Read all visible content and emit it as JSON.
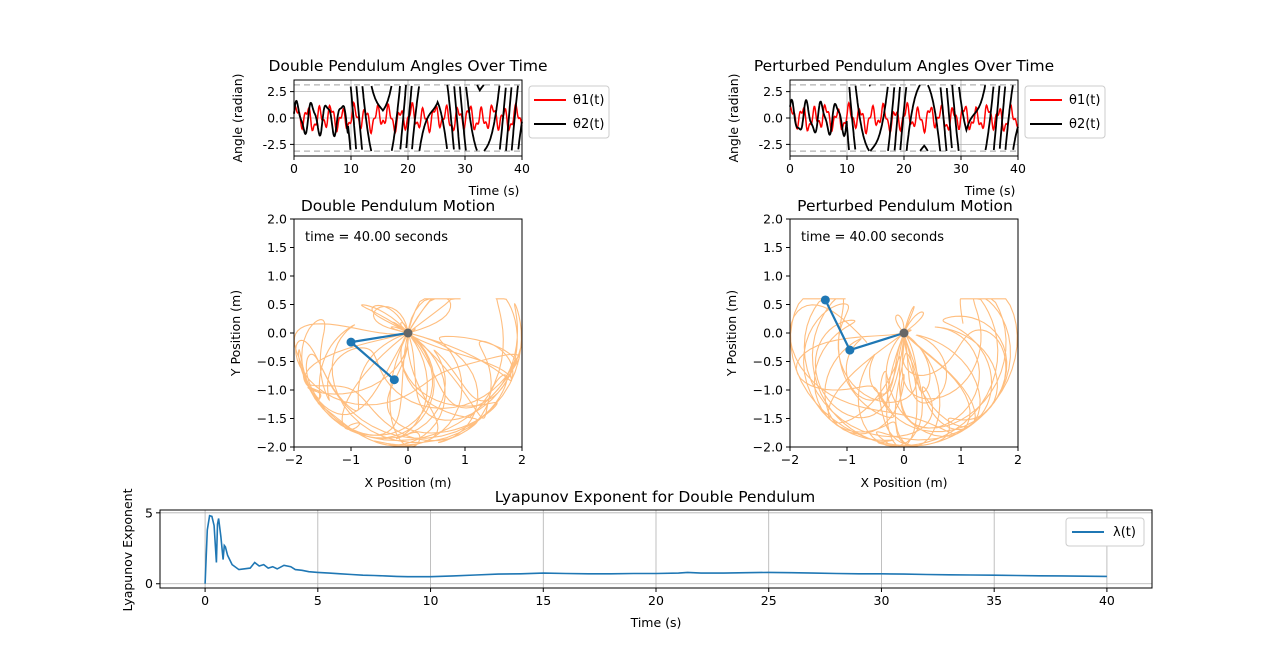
{
  "colors": {
    "theta1": "#ff0000",
    "theta2": "#000000",
    "trace": "#ffbb78",
    "rod": "#1f77b4",
    "mass": "#1f77b4",
    "pivot": "#666666",
    "lyapunov": "#1f77b4",
    "grid": "#b0b0b0",
    "limit_line": "#b0b0b0"
  },
  "chart_data": [
    {
      "id": "angles",
      "type": "line",
      "title": "Double Pendulum Angles Over Time",
      "xlabel": "Time (s)",
      "ylabel": "Angle (radian)",
      "xlim": [
        0,
        40
      ],
      "ylim": [
        -3.6,
        3.6
      ],
      "xticks": [
        "0",
        "10",
        "20",
        "30",
        "40"
      ],
      "yticks": [
        "2.5",
        "0.0",
        "-2.5"
      ],
      "grid": true,
      "hlines": [
        3.14159,
        -3.14159
      ],
      "legend_position": "outside-right",
      "series": [
        {
          "name": "θ1(t)",
          "key": "theta1",
          "amplitude": 1.15,
          "behavior": "bounded oscillation"
        },
        {
          "name": "θ2(t)",
          "key": "theta2",
          "amplitude": 1.5,
          "wraps_after": 9.5,
          "behavior": "oscillation, then wraps between -π and π"
        }
      ]
    },
    {
      "id": "angles_perturbed",
      "type": "line",
      "title": "Perturbed Pendulum Angles Over Time",
      "xlabel": "Time (s)",
      "ylabel": "Angle (radian)",
      "xlim": [
        0,
        40
      ],
      "ylim": [
        -3.6,
        3.6
      ],
      "xticks": [
        "0",
        "10",
        "20",
        "30",
        "40"
      ],
      "yticks": [
        "2.5",
        "0.0",
        "-2.5"
      ],
      "grid": true,
      "hlines": [
        3.14159,
        -3.14159
      ],
      "legend_position": "outside-right",
      "series": [
        {
          "name": "θ1(t)",
          "key": "theta1",
          "amplitude": 1.15,
          "behavior": "bounded oscillation"
        },
        {
          "name": "θ2(t)",
          "key": "theta2",
          "amplitude": 1.5,
          "wraps_after": 10.0,
          "behavior": "oscillation, then wraps between -π and π"
        }
      ]
    },
    {
      "id": "motion",
      "type": "scatter",
      "title": "Double Pendulum Motion",
      "xlabel": "X Position (m)",
      "ylabel": "Y Position (m)",
      "xlim": [
        -2,
        2
      ],
      "ylim": [
        -2,
        2
      ],
      "xticks": [
        "−2",
        "−1",
        "0",
        "1",
        "2"
      ],
      "yticks": [
        "2.0",
        "1.5",
        "1.0",
        "0.5",
        "0.0",
        "−0.5",
        "−1.0",
        "−1.5",
        "−2.0"
      ],
      "annotation": "time = 40.00 seconds",
      "pivot": [
        0,
        0
      ],
      "mass1": [
        -1.0,
        -0.16
      ],
      "mass2": [
        -0.24,
        -0.82
      ]
    },
    {
      "id": "motion_perturbed",
      "type": "scatter",
      "title": "Perturbed Pendulum Motion",
      "xlabel": "X Position (m)",
      "ylabel": "Y Position (m)",
      "xlim": [
        -2,
        2
      ],
      "ylim": [
        -2,
        2
      ],
      "xticks": [
        "−2",
        "−1",
        "0",
        "1",
        "2"
      ],
      "yticks": [
        "2.0",
        "1.5",
        "1.0",
        "0.5",
        "0.0",
        "−0.5",
        "−1.0",
        "−1.5",
        "−2.0"
      ],
      "annotation": "time = 40.00 seconds",
      "pivot": [
        0,
        0
      ],
      "mass1": [
        -0.95,
        -0.3
      ],
      "mass2": [
        -1.38,
        0.58
      ]
    },
    {
      "id": "lyapunov",
      "type": "line",
      "title": "Lyapunov Exponent for Double Pendulum",
      "xlabel": "Time (s)",
      "ylabel": "Lyapunov Exponent",
      "xlim": [
        -2,
        42
      ],
      "ylim": [
        -0.3,
        5.2
      ],
      "xticks": [
        "0",
        "5",
        "10",
        "15",
        "20",
        "25",
        "30",
        "35",
        "40"
      ],
      "yticks": [
        "5",
        "0"
      ],
      "grid": true,
      "legend_position": "top-right",
      "series": [
        {
          "name": "λ(t)",
          "x": [
            0,
            0.1,
            0.2,
            0.3,
            0.4,
            0.5,
            0.55,
            0.6,
            0.7,
            0.8,
            0.85,
            0.9,
            1.0,
            1.2,
            1.5,
            2.0,
            2.2,
            2.4,
            2.6,
            2.8,
            3.0,
            3.2,
            3.5,
            3.8,
            4.0,
            4.3,
            4.6,
            5.0,
            5.5,
            6.0,
            6.5,
            7.0,
            7.5,
            8.0,
            8.5,
            9.0,
            9.5,
            10.0,
            11.0,
            12.0,
            13.0,
            14.0,
            15.0,
            16.0,
            17.0,
            18.0,
            19.0,
            20.0,
            21.0,
            21.4,
            22.0,
            23.0,
            24.0,
            25.0,
            26.0,
            27.0,
            28.0,
            29.0,
            30.0,
            31.0,
            32.0,
            33.0,
            34.0,
            35.0,
            36.0,
            37.0,
            38.0,
            39.0,
            40.0
          ],
          "values": [
            0.0,
            3.8,
            4.8,
            4.75,
            4.1,
            1.5,
            4.2,
            4.6,
            3.3,
            1.7,
            2.7,
            2.6,
            2.0,
            1.35,
            1.0,
            1.1,
            1.5,
            1.25,
            1.35,
            1.1,
            1.2,
            1.05,
            1.3,
            1.2,
            1.0,
            0.95,
            0.85,
            0.8,
            0.75,
            0.7,
            0.65,
            0.6,
            0.58,
            0.55,
            0.52,
            0.5,
            0.5,
            0.5,
            0.55,
            0.62,
            0.68,
            0.7,
            0.75,
            0.72,
            0.7,
            0.7,
            0.72,
            0.72,
            0.75,
            0.8,
            0.75,
            0.75,
            0.78,
            0.8,
            0.78,
            0.75,
            0.72,
            0.7,
            0.7,
            0.68,
            0.65,
            0.63,
            0.62,
            0.6,
            0.58,
            0.56,
            0.55,
            0.53,
            0.52
          ]
        }
      ]
    }
  ]
}
